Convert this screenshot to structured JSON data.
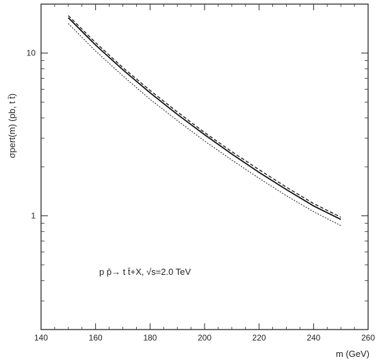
{
  "chart_data": {
    "type": "line",
    "title": "",
    "xlabel": "m (GeV)",
    "ylabel": "σpert(m) (pb, t t̄)",
    "x_scale": "linear",
    "y_scale": "log",
    "xlim": [
      140,
      260
    ],
    "ylim": [
      0.2,
      20
    ],
    "x_ticks": [
      140,
      160,
      180,
      200,
      220,
      240,
      260
    ],
    "x_tick_labels": [
      "140",
      "160",
      "180",
      "200",
      "220",
      "240",
      "260"
    ],
    "y_ticks": [
      1,
      10
    ],
    "y_tick_labels": [
      "1",
      "10"
    ],
    "grid": false,
    "legend": "none",
    "annotation": "p p̄ → t t̄ + X, √s = 2.0 TeV",
    "annotation_display": "p p̄→  t t̄+X, √s=2.0 TeV",
    "series": [
      {
        "style": "solid",
        "x": [
          150,
          160,
          170,
          180,
          190,
          200,
          210,
          220,
          230,
          240,
          250
        ],
        "y": [
          16.5,
          11.2,
          7.9,
          5.7,
          4.2,
          3.15,
          2.4,
          1.85,
          1.45,
          1.15,
          0.95
        ]
      },
      {
        "style": "dashed",
        "x": [
          150,
          160,
          170,
          180,
          190,
          200,
          210,
          220,
          230,
          240,
          250
        ],
        "y": [
          17.0,
          11.6,
          8.15,
          5.9,
          4.35,
          3.25,
          2.48,
          1.92,
          1.5,
          1.19,
          0.98
        ]
      },
      {
        "style": "dotted",
        "x": [
          150,
          160,
          170,
          180,
          190,
          200,
          210,
          220,
          230,
          240,
          250
        ],
        "y": [
          15.2,
          10.3,
          7.25,
          5.2,
          3.85,
          2.88,
          2.2,
          1.7,
          1.33,
          1.06,
          0.87
        ]
      }
    ]
  }
}
